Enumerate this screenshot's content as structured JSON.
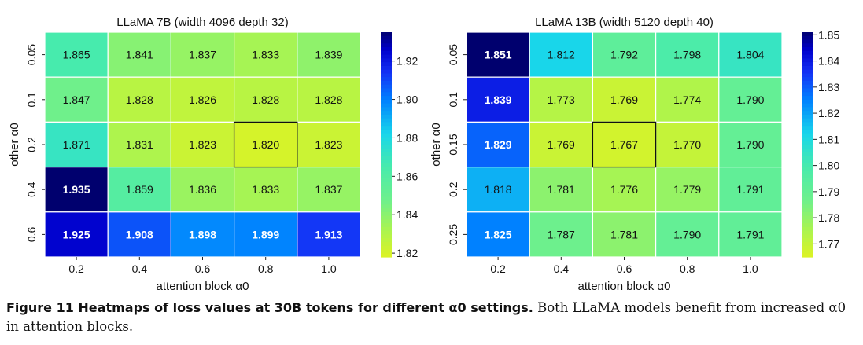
{
  "charts": [
    {
      "type": "heatmap",
      "title": "LLaMA 7B (width 4096 depth 32)",
      "xlabel": "attention block α0",
      "ylabel": "other α0",
      "x": [
        "0.2",
        "0.4",
        "0.6",
        "0.8",
        "1.0"
      ],
      "y": [
        "0.05",
        "0.1",
        "0.2",
        "0.4",
        "0.6"
      ],
      "values": [
        [
          1.865,
          1.841,
          1.837,
          1.833,
          1.839
        ],
        [
          1.847,
          1.828,
          1.826,
          1.828,
          1.828
        ],
        [
          1.871,
          1.831,
          1.823,
          1.82,
          1.823
        ],
        [
          1.935,
          1.859,
          1.836,
          1.833,
          1.837
        ],
        [
          1.925,
          1.908,
          1.898,
          1.899,
          1.913
        ]
      ],
      "best_cell": [
        2,
        3
      ],
      "colorbar": {
        "min": 1.818,
        "max": 1.935,
        "ticks": [
          "1.82",
          "1.84",
          "1.86",
          "1.88",
          "1.90",
          "1.92"
        ],
        "colormap": "jet_r"
      }
    },
    {
      "type": "heatmap",
      "title": "LLaMA 13B (width 5120 depth 40)",
      "xlabel": "attention block α0",
      "ylabel": "other α0",
      "x": [
        "0.2",
        "0.4",
        "0.6",
        "0.8",
        "1.0"
      ],
      "y": [
        "0.05",
        "0.1",
        "0.15",
        "0.2",
        "0.25"
      ],
      "values": [
        [
          1.851,
          1.812,
          1.792,
          1.798,
          1.804
        ],
        [
          1.839,
          1.773,
          1.769,
          1.774,
          1.79
        ],
        [
          1.829,
          1.769,
          1.767,
          1.77,
          1.79
        ],
        [
          1.818,
          1.781,
          1.776,
          1.779,
          1.791
        ],
        [
          1.825,
          1.787,
          1.781,
          1.79,
          1.791
        ]
      ],
      "best_cell": [
        2,
        2
      ],
      "colorbar": {
        "min": 1.765,
        "max": 1.851,
        "ticks": [
          "1.77",
          "1.78",
          "1.79",
          "1.80",
          "1.81",
          "1.82",
          "1.83",
          "1.84",
          "1.85"
        ],
        "colormap": "jet_r"
      }
    }
  ],
  "caption": {
    "lead": "Figure 11 Heatmaps of loss values at 30B tokens for different α0 settings.",
    "body": " Both LLaMA models benefit from increased α0 in attention blocks."
  }
}
